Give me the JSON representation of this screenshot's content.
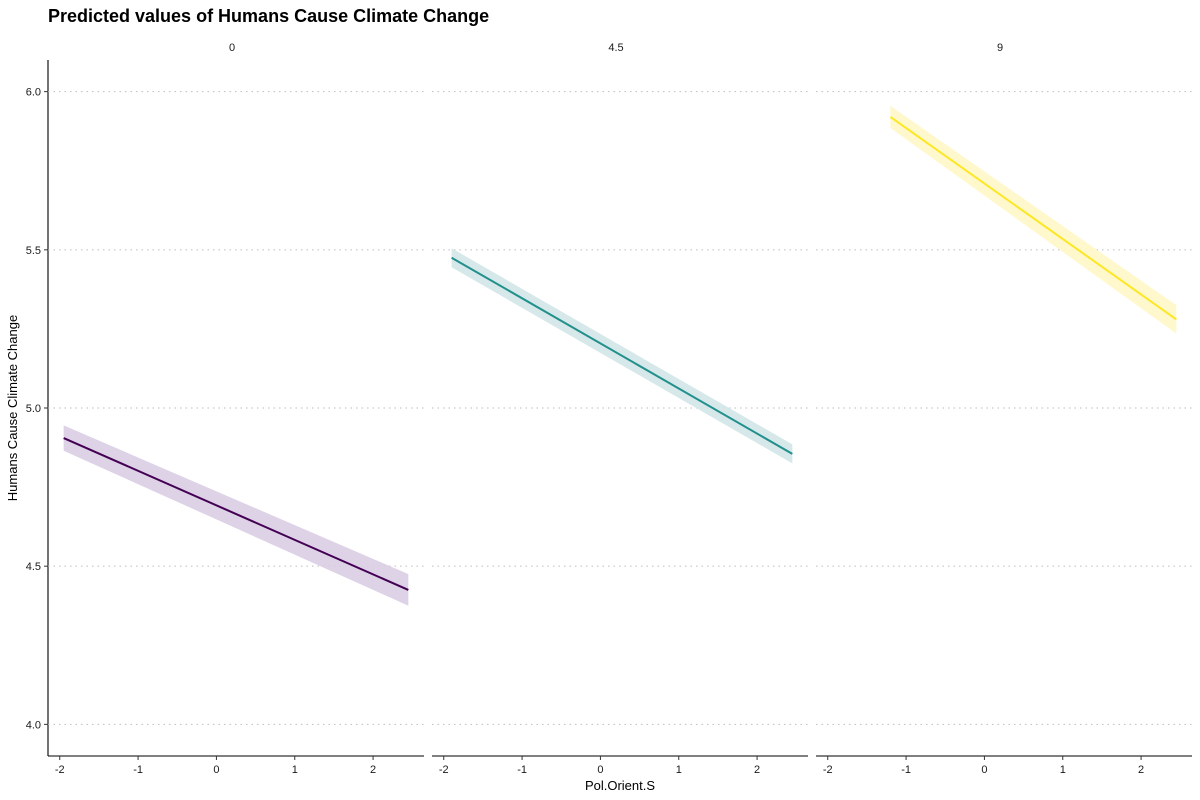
{
  "chart_data": {
    "type": "line",
    "title": "Predicted values of Humans Cause Climate Change",
    "xlabel": "Pol.Orient.S",
    "ylabel": "Humans Cause Climate Change",
    "ylim": [
      3.9,
      6.1
    ],
    "xlim": [
      -2.15,
      2.65
    ],
    "yticks": [
      4.0,
      4.5,
      5.0,
      5.5,
      6.0
    ],
    "ytick_labels": [
      "4.0",
      "4.5",
      "5.0",
      "5.5",
      "6.0"
    ],
    "xticks": [
      -2,
      -1,
      0,
      1,
      2
    ],
    "xtick_labels": [
      "-2",
      "-1",
      "0",
      "1",
      "2"
    ],
    "grid": "horizontal-dotted",
    "facets": [
      {
        "label": "0",
        "color": "#440154",
        "band_color": "#d9cde3",
        "x": [
          -1.95,
          2.45
        ],
        "y": [
          4.905,
          4.425
        ],
        "ci_lower": [
          4.865,
          4.375
        ],
        "ci_upper": [
          4.945,
          4.475
        ]
      },
      {
        "label": "4.5",
        "color": "#21908c",
        "band_color": "#d2e6e7",
        "x": [
          -1.9,
          2.45
        ],
        "y": [
          5.475,
          4.855
        ],
        "ci_lower": [
          5.445,
          4.825
        ],
        "ci_upper": [
          5.505,
          4.885
        ]
      },
      {
        "label": "9",
        "color": "#fde725",
        "band_color": "#fef7c6",
        "x": [
          -1.2,
          2.45
        ],
        "y": [
          5.92,
          5.28
        ],
        "ci_lower": [
          5.885,
          5.235
        ],
        "ci_upper": [
          5.955,
          5.325
        ]
      }
    ]
  }
}
